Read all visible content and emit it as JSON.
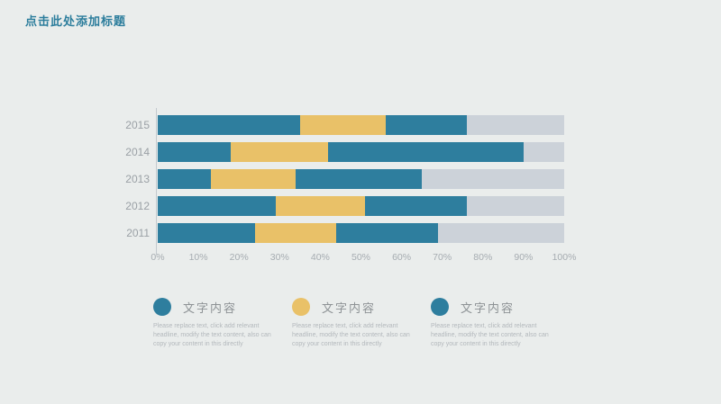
{
  "slide": {
    "background": "#eaedec",
    "title": "点击此处添加标题",
    "title_color": "#2c7d9c"
  },
  "chart_data": {
    "type": "bar",
    "orientation": "horizontal",
    "stacked": true,
    "title": "",
    "xlabel": "",
    "ylabel": "",
    "categories": [
      "2015",
      "2014",
      "2013",
      "2012",
      "2011"
    ],
    "series": [
      {
        "name": "文字内容",
        "color": "#2e7e9e",
        "values": [
          35,
          18,
          13,
          29,
          24
        ]
      },
      {
        "name": "文字内容",
        "color": "#e9c168",
        "values": [
          21,
          24,
          21,
          22,
          20
        ]
      },
      {
        "name": "文字内容",
        "color": "#2e7e9e",
        "values": [
          20,
          48,
          31,
          25,
          25
        ]
      }
    ],
    "remainder_color": "#ccd2d9",
    "xlim": [
      0,
      100
    ],
    "xticks": [
      "0%",
      "10%",
      "20%",
      "30%",
      "40%",
      "50%",
      "60%",
      "70%",
      "80%",
      "90%",
      "100%"
    ],
    "grid": false,
    "legend_position": "bottom"
  },
  "legend": {
    "items": [
      {
        "title": "文字内容",
        "color": "#2e7e9e",
        "body": "Please replace text, click add relevant headline, modify the text content, also can copy your content in this directly"
      },
      {
        "title": "文字内容",
        "color": "#e9c168",
        "body": "Please replace text, click add relevant headline, modify the text content, also can copy your content in this directly"
      },
      {
        "title": "文字内容",
        "color": "#2e7e9e",
        "body": "Please replace text, click add relevant headline, modify the text content, also can copy your content in this directly"
      }
    ]
  }
}
